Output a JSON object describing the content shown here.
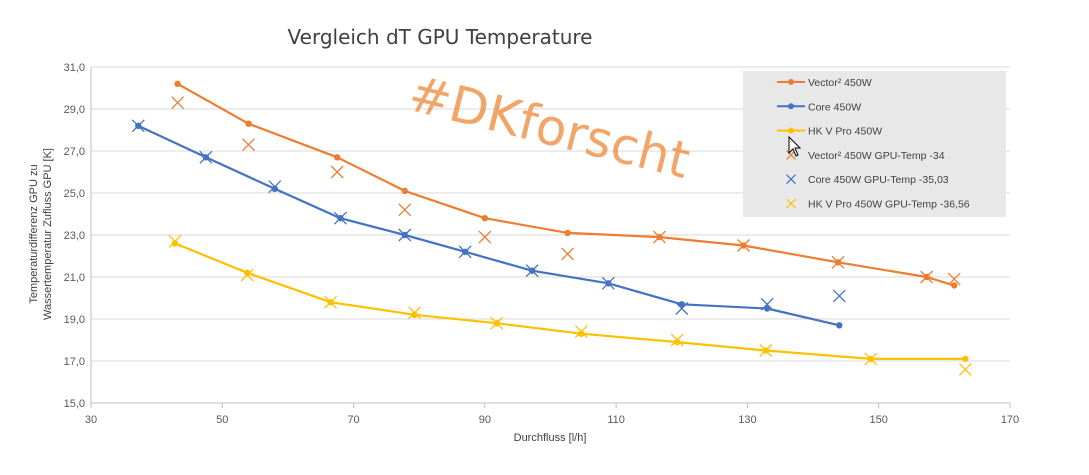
{
  "chart_data": {
    "type": "line",
    "title": "Vergleich dT GPU Temperature",
    "xlabel": "Durchfluss [l/h]",
    "ylabel_line1": "Temperaturdifferenz GPU zu",
    "ylabel_line2": "Wassertemperatur Zufluss GPU  [K]",
    "xlim": [
      30,
      170
    ],
    "ylim": [
      15,
      31
    ],
    "xticks": [
      30,
      50,
      70,
      90,
      110,
      130,
      150,
      170
    ],
    "yticks": [
      15,
      17,
      19,
      21,
      23,
      25,
      27,
      29,
      31
    ],
    "ytick_labels": [
      "15,0",
      "17,0",
      "19,0",
      "21,0",
      "23,0",
      "25,0",
      "27,0",
      "29,0",
      "31,0"
    ],
    "grid": "horizontal",
    "legend_position": "top-right",
    "watermark": "#DKforscht",
    "series": [
      {
        "name": "Vector² 450W",
        "kind": "line",
        "color": "#ed7d31",
        "points": [
          [
            43.2,
            30.2
          ],
          [
            54.0,
            28.3
          ],
          [
            67.5,
            26.7
          ],
          [
            77.8,
            25.1
          ],
          [
            90.0,
            23.8
          ],
          [
            102.6,
            23.1
          ],
          [
            116.6,
            22.9
          ],
          [
            129.4,
            22.5
          ],
          [
            143.8,
            21.7
          ],
          [
            157.3,
            21.0
          ],
          [
            161.5,
            20.6
          ]
        ]
      },
      {
        "name": "Core 450W",
        "kind": "line",
        "color": "#4472c4",
        "points": [
          [
            37.2,
            28.2
          ],
          [
            47.5,
            26.7
          ],
          [
            58.0,
            25.2
          ],
          [
            68.0,
            23.8
          ],
          [
            77.8,
            23.0
          ],
          [
            87.0,
            22.2
          ],
          [
            97.2,
            21.3
          ],
          [
            108.8,
            20.7
          ],
          [
            120.0,
            19.7
          ],
          [
            133.0,
            19.5
          ],
          [
            144.0,
            18.7
          ]
        ]
      },
      {
        "name": "HK V Pro 450W",
        "kind": "line",
        "color": "#ffc000",
        "points": [
          [
            42.8,
            22.6
          ],
          [
            53.8,
            21.2
          ],
          [
            66.5,
            19.8
          ],
          [
            79.3,
            19.2
          ],
          [
            91.8,
            18.8
          ],
          [
            104.7,
            18.3
          ],
          [
            119.3,
            17.9
          ],
          [
            132.8,
            17.5
          ],
          [
            148.8,
            17.1
          ],
          [
            163.2,
            17.1
          ]
        ]
      },
      {
        "name": "Vector² 450W GPU-Temp -34",
        "kind": "cross",
        "color": "#ed7d31",
        "points": [
          [
            43.2,
            29.3
          ],
          [
            54.0,
            27.3
          ],
          [
            67.5,
            26.0
          ],
          [
            77.8,
            24.2
          ],
          [
            90.0,
            22.9
          ],
          [
            102.6,
            22.1
          ],
          [
            116.6,
            22.9
          ],
          [
            129.4,
            22.5
          ],
          [
            143.8,
            21.7
          ],
          [
            157.3,
            21.0
          ],
          [
            161.5,
            20.9
          ]
        ]
      },
      {
        "name": "Core 450W GPU-Temp -35,03",
        "kind": "cross",
        "color": "#4472c4",
        "points": [
          [
            37.2,
            28.2
          ],
          [
            47.5,
            26.7
          ],
          [
            58.0,
            25.3
          ],
          [
            68.0,
            23.8
          ],
          [
            77.8,
            23.0
          ],
          [
            87.0,
            22.2
          ],
          [
            97.2,
            21.3
          ],
          [
            108.8,
            20.7
          ],
          [
            120.0,
            19.5
          ],
          [
            133.0,
            19.7
          ],
          [
            144.0,
            20.1
          ]
        ]
      },
      {
        "name": "HK V Pro 450W GPU-Temp -36,56",
        "kind": "cross",
        "color": "#ffc000",
        "points": [
          [
            42.8,
            22.7
          ],
          [
            53.8,
            21.1
          ],
          [
            66.5,
            19.8
          ],
          [
            79.3,
            19.3
          ],
          [
            91.8,
            18.8
          ],
          [
            104.7,
            18.4
          ],
          [
            119.3,
            18.0
          ],
          [
            132.8,
            17.5
          ],
          [
            148.8,
            17.1
          ],
          [
            163.2,
            16.6
          ]
        ]
      }
    ]
  }
}
